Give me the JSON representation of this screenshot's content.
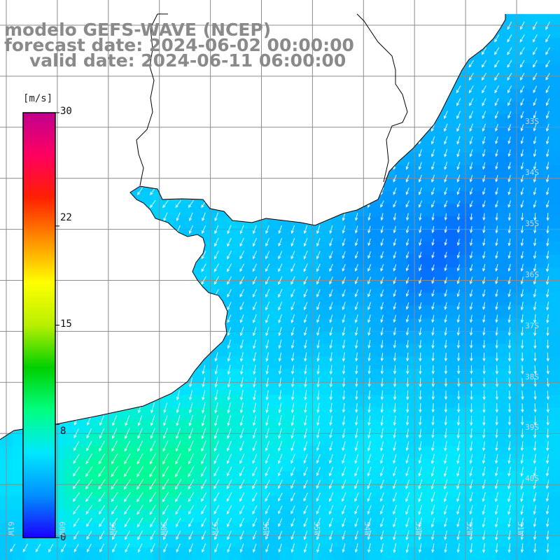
{
  "titles": {
    "line1": "modelo GEFS-WAVE (NCEP)",
    "line2": "forecast date: 2024-06-02 00:00:00",
    "line3": "valid date: 2024-06-11 06:00:00"
  },
  "colorbar": {
    "unit": "[m/s]",
    "ticks": [
      "30",
      "22",
      "15",
      "8",
      "0"
    ],
    "tick_values": [
      30,
      22,
      15,
      8,
      0
    ],
    "range": [
      0,
      30
    ],
    "colors": [
      "#1a00ff",
      "#0090ff",
      "#00e8ff",
      "#00ff80",
      "#00d000",
      "#b8f000",
      "#ffff00",
      "#ff9000",
      "#ff2000",
      "#ff0060",
      "#c00090"
    ]
  },
  "map": {
    "variable": "wind speed and direction",
    "lat_labels": [
      "33S",
      "34S",
      "35S",
      "36S",
      "37S",
      "38S",
      "39S",
      "40S"
    ],
    "lon_labels": [
      "61W",
      "60W",
      "59W",
      "58W",
      "57W",
      "56W",
      "55W",
      "54W",
      "53W",
      "52W",
      "51W"
    ],
    "colors": {
      "land": "#ffffff",
      "coast": "#000000",
      "grid": "#8c8c8c",
      "arrow": "#ffffff",
      "title": "#8a8a8a"
    },
    "prevailing_wind": "southwestward / southward"
  }
}
